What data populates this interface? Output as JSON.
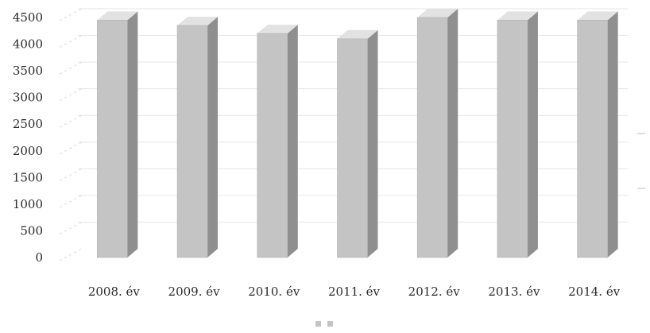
{
  "chart_data": {
    "type": "bar",
    "categories": [
      "2008. év",
      "2009. év",
      "2010. év",
      "2011. év",
      "2012. év",
      "2013. év",
      "2014. év"
    ],
    "values": [
      4450,
      4350,
      4200,
      4100,
      4500,
      4450,
      4450
    ],
    "yticks": [
      "0",
      "500",
      "1000",
      "1500",
      "2000",
      "2500",
      "3000",
      "3500",
      "4000",
      "4500"
    ],
    "ylim": [
      0,
      4500
    ],
    "bar_style": "3d",
    "colors": {
      "bar_front": "#c4c4c4",
      "bar_side": "#8f8f8f",
      "bar_top": "#e2e2e2",
      "grid": "#e6e6e6"
    },
    "grid": true,
    "legend_position": "bottom"
  }
}
